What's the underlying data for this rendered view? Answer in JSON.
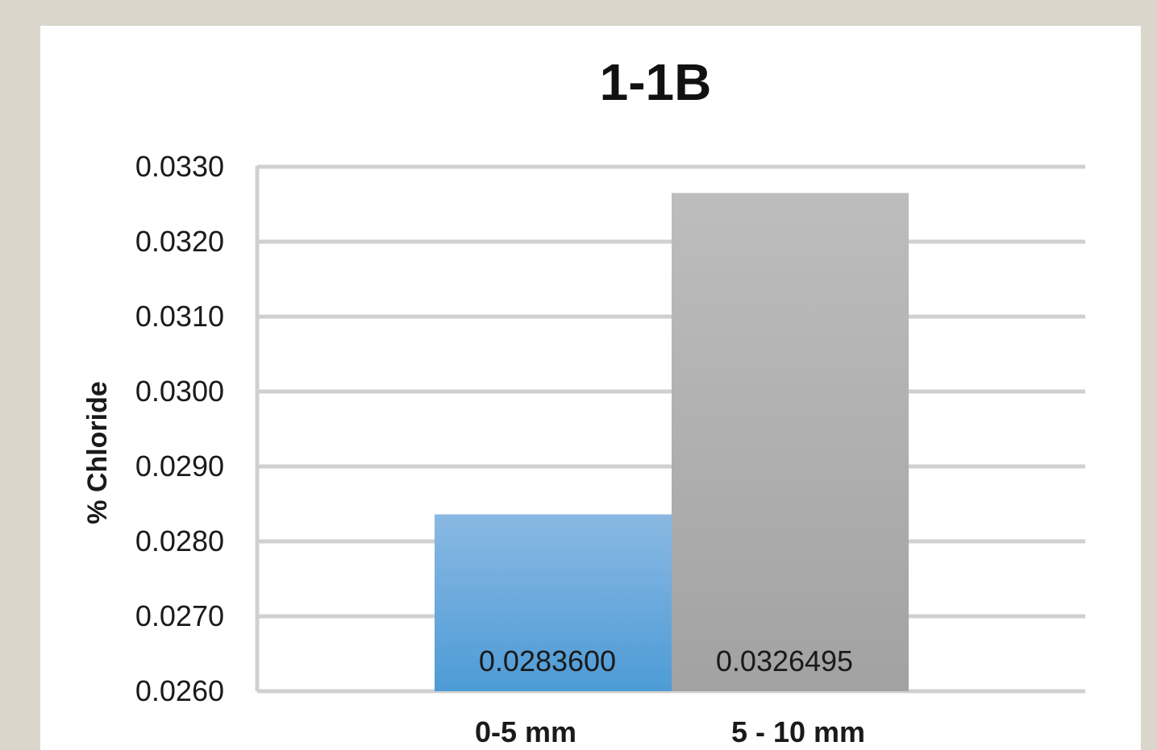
{
  "chart_data": {
    "type": "bar",
    "title": "1-1B",
    "ylabel": "% Chloride",
    "xlabel": "",
    "categories": [
      "0-5 mm",
      "5 - 10 mm"
    ],
    "values": [
      0.02836,
      0.0326495
    ],
    "data_labels": [
      "0.0283600",
      "0.0326495"
    ],
    "bar_colors": [
      "#62a8de",
      "#afafaf"
    ],
    "ylim": [
      0.026,
      0.033
    ],
    "yticks": [
      0.026,
      0.027,
      0.028,
      0.029,
      0.03,
      0.031,
      0.032,
      0.033
    ],
    "ytick_labels": [
      "0.0260",
      "0.0270",
      "0.0280",
      "0.0290",
      "0.0300",
      "0.0310",
      "0.0320",
      "0.0330"
    ],
    "grid": true,
    "legend": "none"
  }
}
